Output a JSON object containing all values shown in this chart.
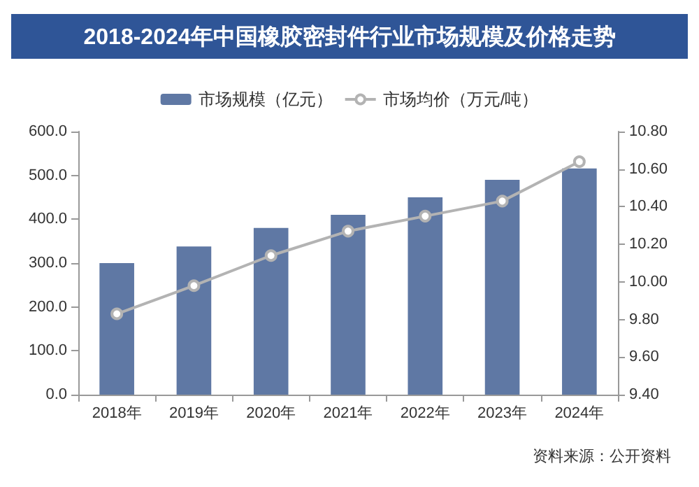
{
  "chart_data": {
    "type": "bar",
    "title": "2018-2024年中国橡胶密封件行业市场规模及价格走势",
    "categories": [
      "2018年",
      "2019年",
      "2020年",
      "2021年",
      "2022年",
      "2023年",
      "2024年"
    ],
    "series": [
      {
        "name": "市场规模（亿元）",
        "color": "#5f78a4",
        "values": [
          300,
          338,
          380,
          410,
          450,
          490,
          516
        ]
      },
      {
        "name": "市场均价（万元/吨）",
        "type": "line",
        "axis": "y2",
        "color": "#b3b3b3",
        "marker": "circle",
        "values": [
          9.83,
          9.98,
          10.14,
          10.27,
          10.35,
          10.43,
          10.64
        ]
      }
    ],
    "ylim": [
      0,
      600
    ],
    "yticks": [
      {
        "value": 0,
        "label": "0.0"
      },
      {
        "value": 100,
        "label": "100.0"
      },
      {
        "value": 200,
        "label": "200.0"
      },
      {
        "value": 300,
        "label": "300.0"
      },
      {
        "value": 400,
        "label": "400.0"
      },
      {
        "value": 500,
        "label": "500.0"
      },
      {
        "value": 600,
        "label": "600.0"
      }
    ],
    "y2lim": [
      9.4,
      10.8
    ],
    "y2ticks": [
      {
        "value": 9.4,
        "label": "9.40"
      },
      {
        "value": 9.6,
        "label": "9.60"
      },
      {
        "value": 9.8,
        "label": "9.80"
      },
      {
        "value": 10,
        "label": "10.00"
      },
      {
        "value": 10.2,
        "label": "10.20"
      },
      {
        "value": 10.4,
        "label": "10.40"
      },
      {
        "value": 10.6,
        "label": "10.60"
      },
      {
        "value": 10.8,
        "label": "10.80"
      }
    ],
    "grid": false,
    "legend": "top",
    "annotations": [
      "资料来源：公开资料"
    ]
  }
}
